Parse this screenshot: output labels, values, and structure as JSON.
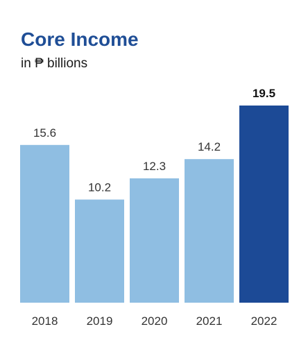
{
  "chart_data": {
    "type": "bar",
    "title": "Core Income",
    "subtitle": "in ₱ billions",
    "categories": [
      "2018",
      "2019",
      "2020",
      "2021",
      "2022"
    ],
    "values": [
      15.6,
      10.2,
      12.3,
      14.2,
      19.5
    ],
    "value_labels": [
      "15.6",
      "10.2",
      "12.3",
      "14.2",
      "19.5"
    ],
    "highlight_index": 4,
    "colors": {
      "bar": "#8fbee2",
      "highlight": "#1c4a96",
      "title": "#1f4e96"
    },
    "ylim": [
      0,
      19.5
    ],
    "grid": false,
    "legend": "none"
  }
}
